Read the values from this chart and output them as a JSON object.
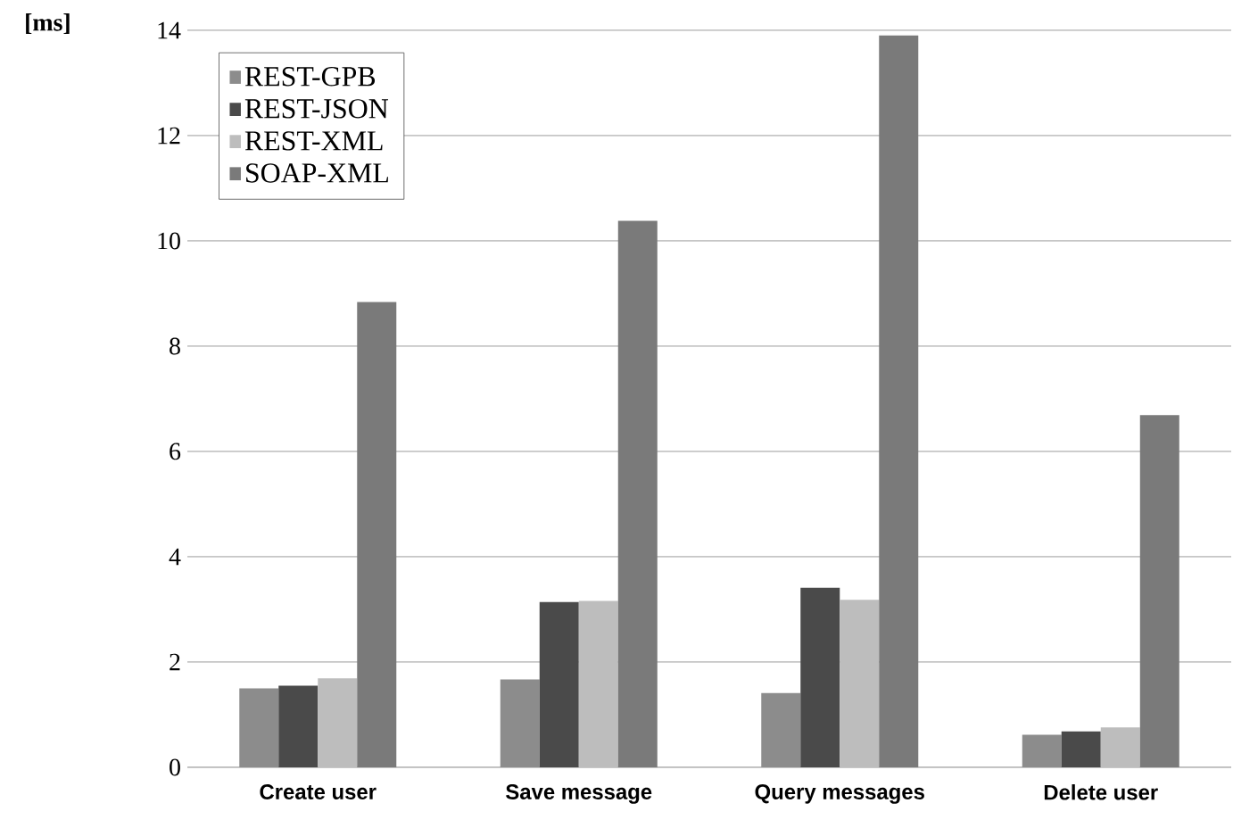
{
  "chart_data": {
    "type": "bar",
    "ylabel": "[ms]",
    "categories": [
      "Create user",
      "Save message",
      "Query messages",
      "Delete user"
    ],
    "series": [
      {
        "name": "REST-GPB",
        "color": "#8c8c8c",
        "values": [
          1.5,
          1.67,
          1.41,
          0.62
        ]
      },
      {
        "name": "REST-JSON",
        "color": "#4a4a4a",
        "values": [
          1.55,
          3.14,
          3.41,
          0.68
        ]
      },
      {
        "name": "REST-XML",
        "color": "#bdbdbd",
        "values": [
          1.69,
          3.16,
          3.18,
          0.76
        ]
      },
      {
        "name": "SOAP-XML",
        "color": "#7a7a7a",
        "values": [
          8.84,
          10.38,
          13.9,
          6.69
        ]
      }
    ],
    "ylim": [
      0,
      14
    ],
    "yticks": [
      0,
      2,
      4,
      6,
      8,
      10,
      12,
      14
    ],
    "grid": "y",
    "legend": "top left"
  }
}
